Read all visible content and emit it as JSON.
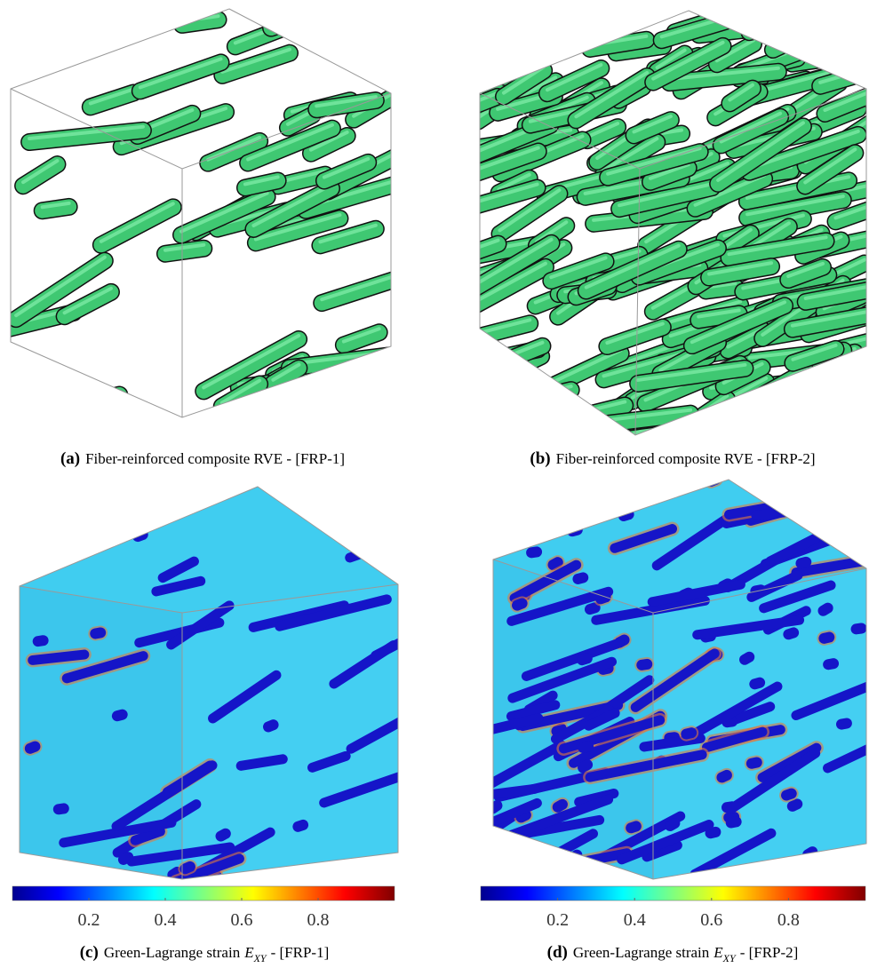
{
  "panels": [
    {
      "caption": {
        "label": "(a)",
        "text": "Fiber-reinforced composite RVE - [FRP-1]"
      }
    },
    {
      "caption": {
        "label": "(b)",
        "text": "Fiber-reinforced composite RVE - [FRP-2]"
      }
    },
    {
      "caption": {
        "label": "(c)",
        "text": "Green-Lagrange strain",
        "symbol": "E",
        "subscript": "XY",
        "suffix": "- [FRP-1]"
      },
      "colorbar": {
        "range": [
          0,
          1
        ],
        "ticks": [
          0.2,
          0.4,
          0.6,
          0.8
        ]
      }
    },
    {
      "caption": {
        "label": "(d)",
        "text": "Green-Lagrange strain",
        "symbol": "E",
        "subscript": "XY",
        "suffix": "- [FRP-2]"
      },
      "colorbar": {
        "range": [
          0,
          1
        ],
        "ticks": [
          0.2,
          0.4,
          0.6,
          0.8
        ]
      }
    }
  ]
}
